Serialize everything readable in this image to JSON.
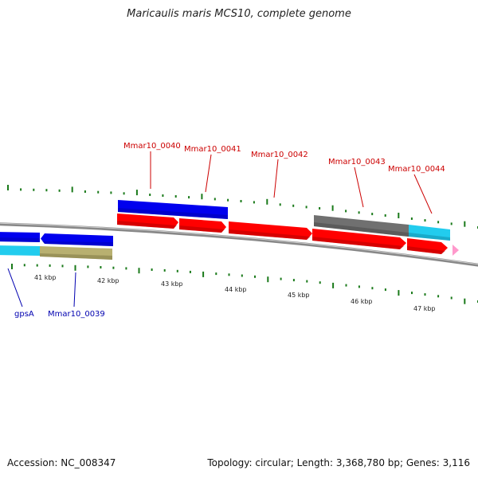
{
  "title": "Maricaulis maris MCS10, complete genome",
  "footer": {
    "accession": "Accession: NC_008347",
    "summary": "Topology: circular; Length: 3,368,780 bp; Genes: 3,116"
  },
  "colors": {
    "backbone": "#888888",
    "tick": "#1a7a1a",
    "forward_label": "#cc0000",
    "reverse_label": "#0000b0",
    "gene_red": "#ff0000",
    "gene_blue": "#0000ee",
    "gene_cyan": "#22ccee",
    "gene_gray": "#707070",
    "gene_olive": "#b8b070",
    "gene_pink": "#ff99cc"
  },
  "scale": {
    "unit": "kbp",
    "ticks": [
      "41 kbp",
      "42 kbp",
      "43 kbp",
      "44 kbp",
      "45 kbp",
      "46 kbp",
      "47 kbp"
    ]
  },
  "forward_genes": [
    {
      "label": "Mmar10_0040"
    },
    {
      "label": "Mmar10_0041"
    },
    {
      "label": "Mmar10_0042"
    },
    {
      "label": "Mmar10_0043"
    },
    {
      "label": "Mmar10_0044"
    }
  ],
  "reverse_genes": [
    {
      "label": "gpsA"
    },
    {
      "label": "Mmar10_0039"
    }
  ]
}
